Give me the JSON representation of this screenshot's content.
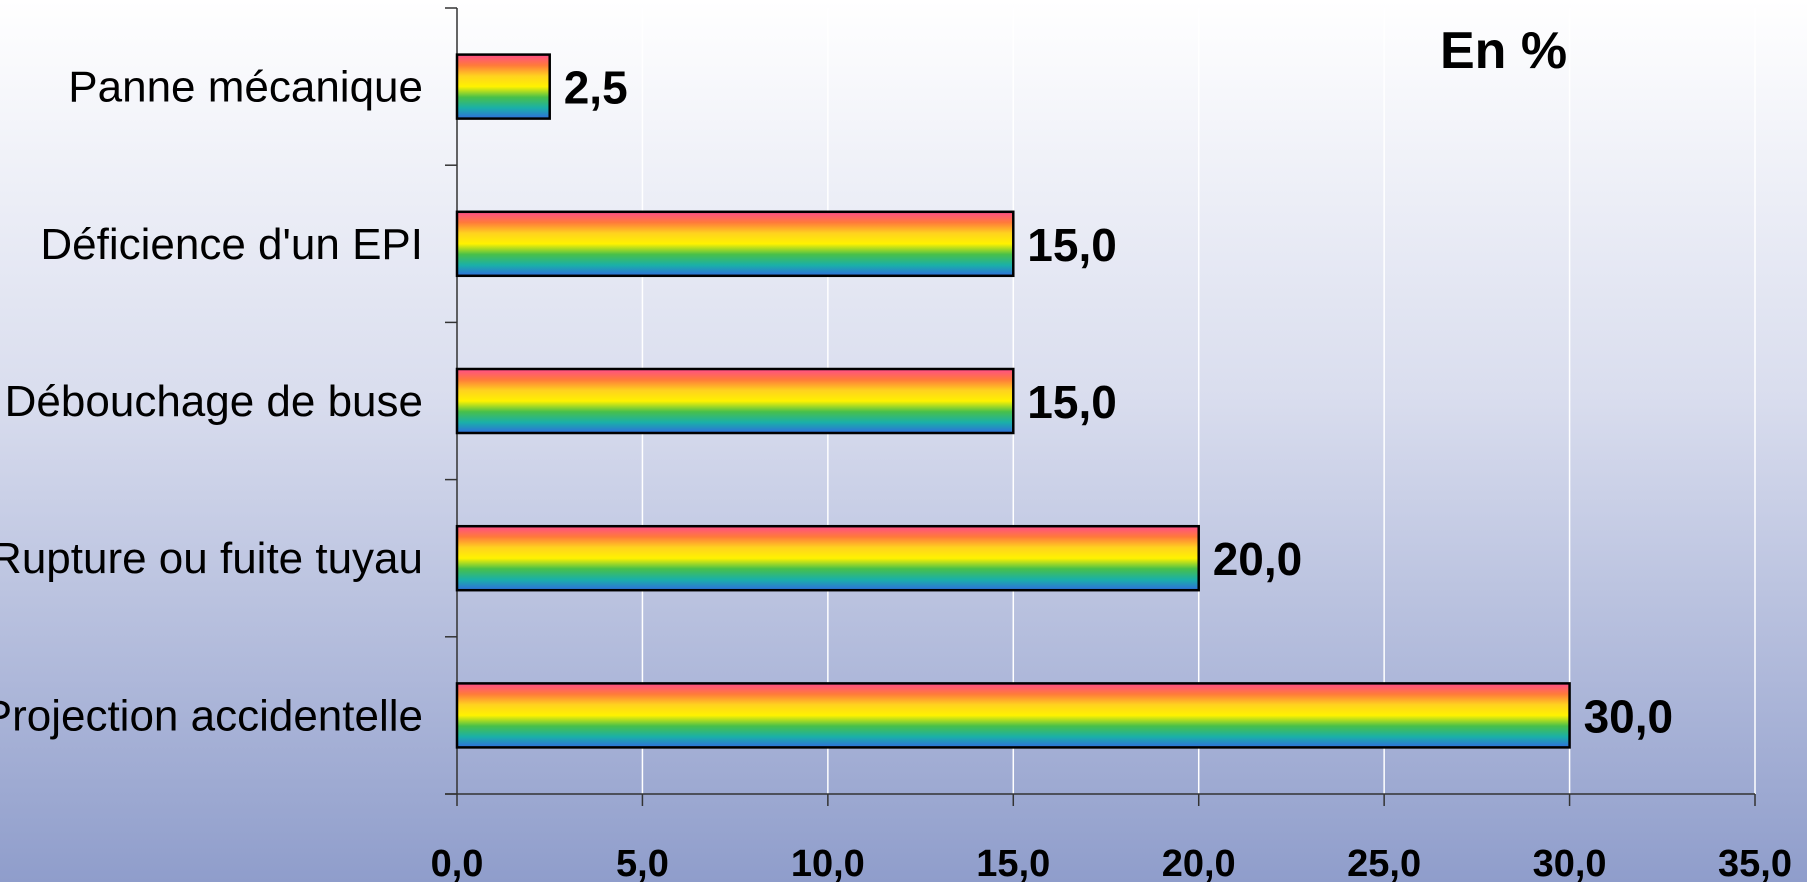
{
  "chart_data": {
    "type": "bar",
    "orientation": "horizontal",
    "unit_label": "En %",
    "categories": [
      "Panne mécanique",
      "Déficience d'un EPI",
      "Débouchage de buse",
      "Rupture ou fuite tuyau",
      "Projection accidentelle"
    ],
    "values": [
      2.5,
      15.0,
      15.0,
      20.0,
      30.0
    ],
    "value_labels": [
      "2,5",
      "15,0",
      "15,0",
      "20,0",
      "30,0"
    ],
    "xlim": [
      0,
      35
    ],
    "x_ticks": [
      0,
      5,
      10,
      15,
      20,
      25,
      30,
      35
    ],
    "x_tick_labels": [
      "0,0",
      "5,0",
      "10,0",
      "15,0",
      "20,0",
      "25,0",
      "30,0",
      "35,0"
    ],
    "grid": "vertical",
    "colors": {
      "bar_fill": [
        "#ff4d8a",
        "#ff7a3a",
        "#ffd21f",
        "#fff200",
        "#48c04a",
        "#1ab0a8",
        "#2f6ddc"
      ],
      "bar_border": "#000000",
      "grid": "#ffffff",
      "axis": "#333333"
    }
  }
}
